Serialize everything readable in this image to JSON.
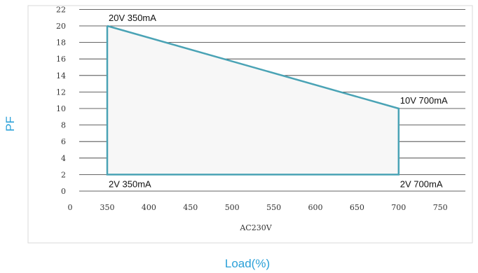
{
  "chart_data": {
    "type": "line",
    "title": "",
    "xlabel": "Load(%)",
    "ylabel": "PF",
    "x_sublabel": "AC230V",
    "xlim": [
      0,
      800
    ],
    "ylim": [
      0,
      22
    ],
    "xticks": [
      0,
      350,
      400,
      450,
      500,
      550,
      600,
      650,
      700,
      750
    ],
    "yticks": [
      0,
      2,
      4,
      6,
      8,
      10,
      12,
      14,
      16,
      18,
      20,
      22
    ],
    "x_scale": "non-linear (0 then 350–750 evenly spaced)",
    "grid": "horizontal",
    "series": [
      {
        "color": "#4aa3b5",
        "points": [
          {
            "x": 350,
            "y": 20
          },
          {
            "x": 700,
            "y": 10
          },
          {
            "x": 700,
            "y": 2
          },
          {
            "x": 350,
            "y": 2
          },
          {
            "x": 350,
            "y": 20
          }
        ]
      }
    ],
    "point_labels": [
      {
        "text": "20V 350mA",
        "x": 350,
        "y": 20,
        "anchor": "above-right"
      },
      {
        "text": "10V 700mA",
        "x": 700,
        "y": 10,
        "anchor": "above-right"
      },
      {
        "text": "2V 700mA",
        "x": 700,
        "y": 2,
        "anchor": "below-right"
      },
      {
        "text": "2V 350mA",
        "x": 350,
        "y": 2,
        "anchor": "below-right"
      }
    ]
  },
  "colors": {
    "line": "#4aa3b5",
    "grid": "#333333",
    "frame": "#d9d9d9",
    "fill": "#f7f7f7",
    "axis_label": "#2aa0d8"
  }
}
